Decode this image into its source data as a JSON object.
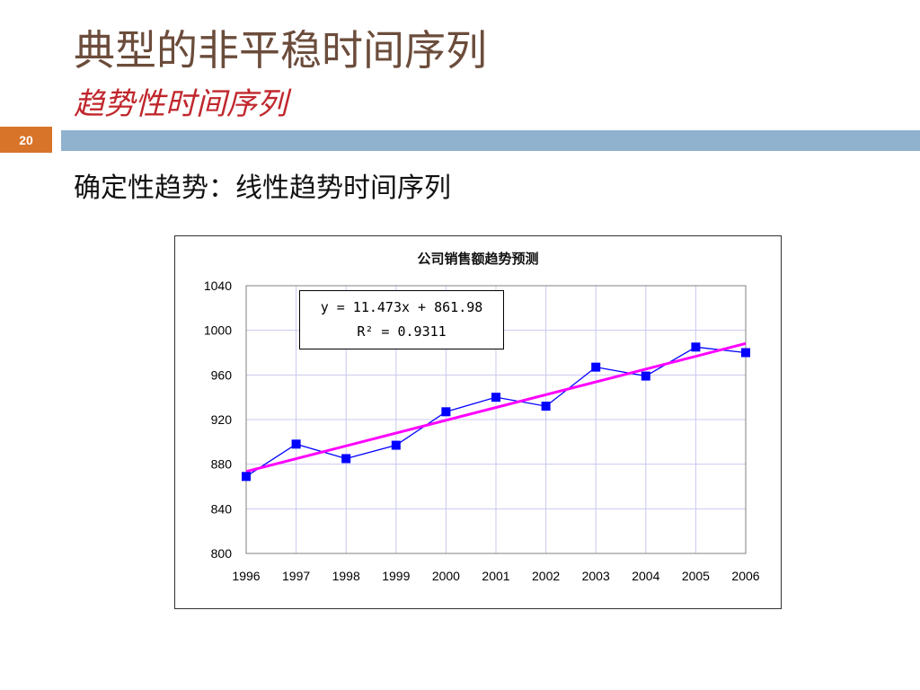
{
  "slide": {
    "title": "典型的非平稳时间序列",
    "subtitle": "趋势性时间序列",
    "slide_number": "20",
    "body_text": "确定性趋势：线性趋势时间序列",
    "colors": {
      "title": "#6b4c3b",
      "subtitle": "#c0272d",
      "band": "#90b2cf",
      "slide_number_bg": "#d8732a"
    }
  },
  "chart_data": {
    "type": "line",
    "title": "公司销售额趋势预测",
    "xlabel": "",
    "ylabel": "",
    "categories": [
      "1996",
      "1997",
      "1998",
      "1999",
      "2000",
      "2001",
      "2002",
      "2003",
      "2004",
      "2005",
      "2006"
    ],
    "series": [
      {
        "values": [
          869,
          898,
          885,
          897,
          927,
          940,
          932,
          967,
          959,
          985,
          980
        ],
        "color": "#0000ff",
        "marker": "square"
      }
    ],
    "trendline": {
      "type": "linear",
      "slope": 11.473,
      "intercept": 861.98,
      "color": "#ff00ff",
      "equation": "y = 11.473x + 861.98",
      "r2_label": "R² = 0.9311"
    },
    "ylim": [
      800,
      1040
    ],
    "yticks": [
      800,
      840,
      880,
      920,
      960,
      1000,
      1040
    ],
    "grid": true,
    "grid_color": "#c8c8f0"
  }
}
